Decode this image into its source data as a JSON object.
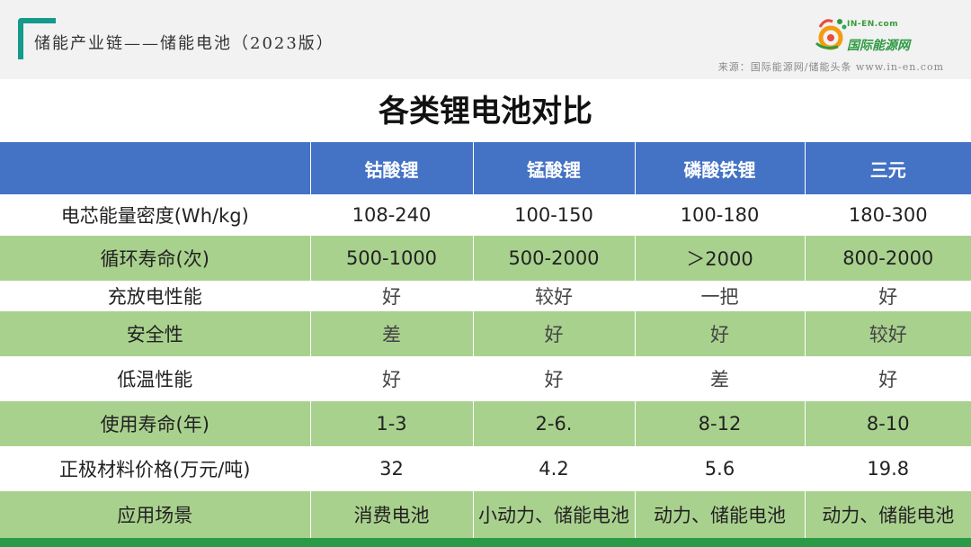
{
  "header": {
    "doc_title": "储能产业链——储能电池（2023版）",
    "logo_sub": "IN-EN.com",
    "logo_text": "国际能源网",
    "source": "来源：国际能源网/储能头条 www.in-en.com"
  },
  "main_title": "各类锂电池对比",
  "table": {
    "columns": [
      "",
      "钴酸锂",
      "锰酸锂",
      "磷酸铁锂",
      "三元"
    ],
    "rows": [
      {
        "label": "电芯能量密度(Wh/kg)",
        "values": [
          "108-240",
          "100-150",
          "100-180",
          "180-300"
        ]
      },
      {
        "label": "循环寿命(次)",
        "values": [
          "500-1000",
          "500-2000",
          "＞2000",
          "800-2000"
        ]
      },
      {
        "label": "充放电性能",
        "values": [
          "好",
          "较好",
          "一把",
          "好"
        ]
      },
      {
        "label": "安全性",
        "values": [
          "差",
          "好",
          "好",
          "较好"
        ]
      },
      {
        "label": "低温性能",
        "values": [
          "好",
          "好",
          "差",
          "好"
        ]
      },
      {
        "label": "使用寿命(年)",
        "values": [
          "1-3",
          "2-6.",
          "8-12",
          "8-10"
        ]
      },
      {
        "label": "正极材料价格(万元/吨)",
        "values": [
          "32",
          "4.2",
          "5.6",
          "19.8"
        ]
      },
      {
        "label": "应用场景",
        "values": [
          "消费电池",
          "小动力、储能电池",
          "动力、储能电池",
          "动力、储能电池"
        ]
      }
    ]
  },
  "colors": {
    "header_blue": "#4472c4",
    "row_green": "#a9d18e",
    "brand_teal": "#159a8b",
    "footer_green": "#2a9a48"
  }
}
